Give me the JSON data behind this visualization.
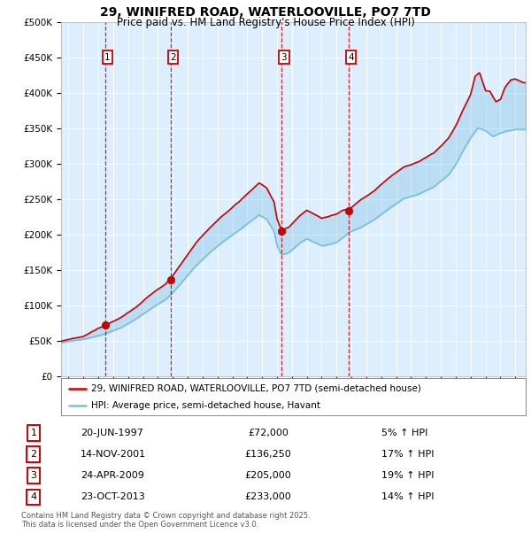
{
  "title_line1": "29, WINIFRED ROAD, WATERLOOVILLE, PO7 7TD",
  "title_line2": "Price paid vs. HM Land Registry's House Price Index (HPI)",
  "hpi_color": "#7bbfdd",
  "price_color": "#cc0000",
  "plot_bg": "#ddeeff",
  "transaction_dates_decimal": [
    1997.47,
    2001.87,
    2009.31,
    2013.81
  ],
  "transaction_prices": [
    72000,
    136250,
    205000,
    233000
  ],
  "transaction_labels": [
    "1",
    "2",
    "3",
    "4"
  ],
  "transaction_pct": [
    "5% ↑ HPI",
    "17% ↑ HPI",
    "19% ↑ HPI",
    "14% ↑ HPI"
  ],
  "transaction_date_strs": [
    "20-JUN-1997",
    "14-NOV-2001",
    "24-APR-2009",
    "23-OCT-2013"
  ],
  "legend_line1": "29, WINIFRED ROAD, WATERLOOVILLE, PO7 7TD (semi-detached house)",
  "legend_line2": "HPI: Average price, semi-detached house, Havant",
  "footer": "Contains HM Land Registry data © Crown copyright and database right 2025.\nThis data is licensed under the Open Government Licence v3.0.",
  "row_prices": [
    "£72,000",
    "£136,250",
    "£205,000",
    "£233,000"
  ],
  "xlim_start": 1994.5,
  "xlim_end": 2025.7,
  "ylim": [
    0,
    500000
  ],
  "yticks": [
    0,
    50000,
    100000,
    150000,
    200000,
    250000,
    300000,
    350000,
    400000,
    450000,
    500000
  ],
  "ytick_labels": [
    "£0",
    "£50K",
    "£100K",
    "£150K",
    "£200K",
    "£250K",
    "£300K",
    "£350K",
    "£400K",
    "£450K",
    "£500K"
  ]
}
